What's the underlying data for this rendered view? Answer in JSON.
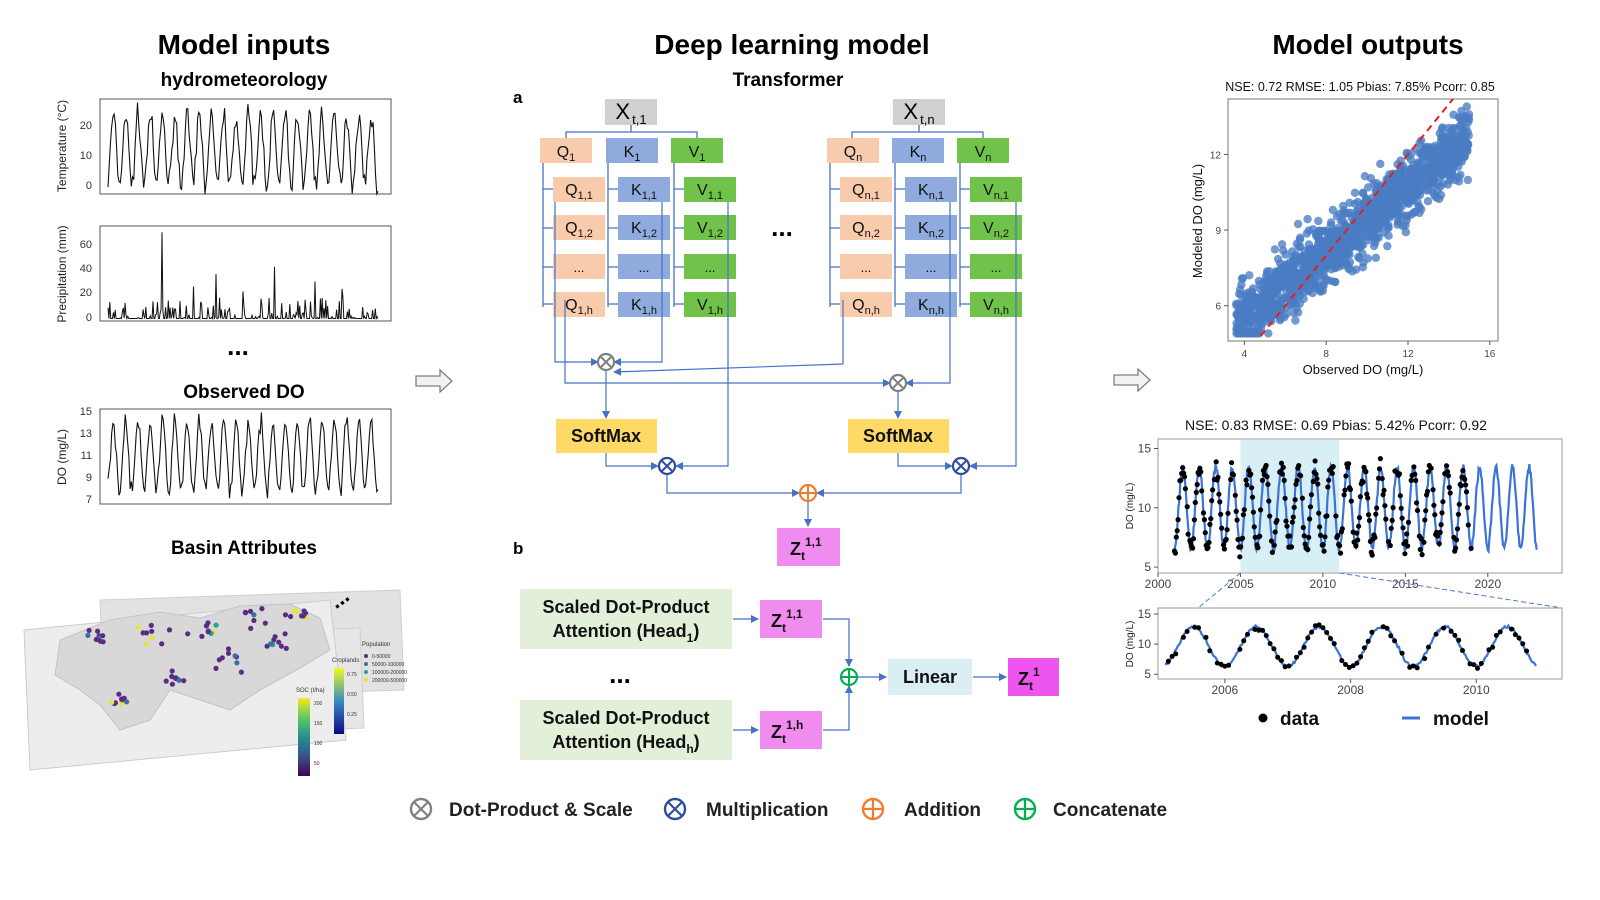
{
  "titles": {
    "inputs": "Model inputs",
    "model": "Deep learning model",
    "outputs": "Model outputs"
  },
  "inputs": {
    "hydromet": "hydrometeorology",
    "temp_ylabel": "Temperature (°C)",
    "temp_ticks": [
      "20",
      "10",
      "0"
    ],
    "precip_ylabel": "Precipitation (mm)",
    "precip_ticks": [
      "60",
      "40",
      "20",
      "0"
    ],
    "ellipsis": "...",
    "observed_do": "Observed DO",
    "do_ylabel": "DO (mg/L)",
    "do_ticks": [
      "15",
      "13",
      "11",
      "9",
      "7"
    ],
    "basin": "Basin Attributes",
    "map_legend": {
      "population": "Population",
      "pop_items": [
        "0-50000",
        "50000-100000",
        "100000-200000",
        "200000-500000"
      ],
      "croplands": "Croplands",
      "crop_ticks": [
        "0.75",
        "0.50",
        "0.25"
      ],
      "soc": "SOC (t/ha)",
      "soc_ticks": [
        "200",
        "150",
        "100",
        "50"
      ]
    }
  },
  "model": {
    "transformer": "Transformer",
    "label_a": "a",
    "label_b": "b",
    "head1": {
      "x_main": "X",
      "x_sub": "t,1",
      "q": "Q",
      "q_sub": "1",
      "k": "K",
      "k_sub": "1",
      "v": "V",
      "v_sub": "1",
      "rows": [
        {
          "q": "Q",
          "q_sub": "1,1",
          "k": "K",
          "k_sub": "1,1",
          "v": "V",
          "v_sub": "1,1"
        },
        {
          "q": "Q",
          "q_sub": "1,2",
          "k": "K",
          "k_sub": "1,2",
          "v": "V",
          "v_sub": "1,2"
        },
        {
          "q": "...",
          "q_sub": "",
          "k": "...",
          "k_sub": "",
          "v": "...",
          "v_sub": ""
        },
        {
          "q": "Q",
          "q_sub": "1,h",
          "k": "K",
          "k_sub": "1,h",
          "v": "V",
          "v_sub": "1,h"
        }
      ]
    },
    "headn": {
      "x_main": "X",
      "x_sub": "t,n",
      "q": "Q",
      "q_sub": "n",
      "k": "K",
      "k_sub": "n",
      "v": "V",
      "v_sub": "n",
      "rows": [
        {
          "q": "Q",
          "q_sub": "n,1",
          "k": "K",
          "k_sub": "n,1",
          "v": "V",
          "v_sub": "n,1"
        },
        {
          "q": "Q",
          "q_sub": "n,2",
          "k": "K",
          "k_sub": "n,2",
          "v": "V",
          "v_sub": "n,2"
        },
        {
          "q": "...",
          "q_sub": "",
          "k": "...",
          "k_sub": "",
          "v": "...",
          "v_sub": ""
        },
        {
          "q": "Q",
          "q_sub": "n,h",
          "k": "K",
          "k_sub": "n,h",
          "v": "V",
          "v_sub": "n,h"
        }
      ]
    },
    "between_dots": "...",
    "softmax": "SoftMax",
    "z_out": {
      "main": "Z",
      "sub": "t",
      "sup": "1,1"
    },
    "sdpa": {
      "line1": "Scaled Dot-Product",
      "line2": "Attention (Head",
      "sub1": "1",
      "subh": "h",
      "close": ")"
    },
    "z_head1": {
      "main": "Z",
      "sub": "t",
      "sup": "1,1"
    },
    "z_headh": {
      "main": "Z",
      "sub": "t",
      "sup": "1,h"
    },
    "b_dots": "...",
    "linear": "Linear",
    "z_final": {
      "main": "Z",
      "sub": "t",
      "sup": "1"
    }
  },
  "outputs": {
    "scatter_metrics": "NSE: 0.72  RMSE: 1.05  Pbias: 7.85%  Pcorr: 0.85",
    "scatter_xlabel": "Observed DO (mg/L)",
    "scatter_ylabel": "Modeled DO (mg/L)",
    "ts_metrics": "NSE: 0.83  RMSE: 0.69  Pbias: 5.42%  Pcorr: 0.92",
    "ts_ylabel": "DO (mg/L)",
    "zoom_ylabel": "DO (mg/L)",
    "legend_data": "data",
    "legend_model": "model"
  },
  "legend": {
    "dot_product": "Dot-Product & Scale",
    "multiplication": "Multiplication",
    "addition": "Addition",
    "concatenate": "Concatenate"
  },
  "colors": {
    "q": "#f8cbad",
    "k": "#8faadc",
    "v": "#70c24a",
    "x": "#d0d0d0",
    "softmax": "#ffd966",
    "z": "#f08cf0",
    "z_final": "#ee55ee",
    "sdpa": "#e2f0d9",
    "linear": "#dbeef4",
    "arrow": "#4472c4",
    "scatter_point": "#4a7cc4",
    "one_to_one": "#e02020",
    "highlight": "#d9eff6",
    "model_line": "#3a74d6",
    "dot_product_sym": "#808080",
    "multiplication_sym": "#2f4d9e",
    "addition_sym": "#ed7d31",
    "concatenate_sym": "#00b050"
  },
  "chart_data": [
    {
      "type": "line",
      "name": "temperature",
      "ylabel": "Temperature (°C)",
      "ylim": [
        -3,
        27
      ],
      "yticks": [
        0,
        10,
        20
      ],
      "seasonal_cycles": 22,
      "mean": 11,
      "amplitude": 11
    },
    {
      "type": "line",
      "name": "precipitation",
      "ylabel": "Precipitation (mm)",
      "ylim": [
        -2,
        75
      ],
      "yticks": [
        0,
        20,
        40,
        60
      ],
      "peak": 70
    },
    {
      "type": "line",
      "name": "observed_do",
      "ylabel": "DO (mg/L)",
      "ylim": [
        6.6,
        15.4
      ],
      "yticks": [
        7,
        9,
        11,
        13,
        15
      ],
      "seasonal_cycles": 22,
      "mean": 11,
      "amplitude": 3.2
    },
    {
      "type": "scatter",
      "title": "NSE: 0.72  RMSE: 1.05  Pbias: 7.85%  Pcorr: 0.85",
      "xlabel": "Observed DO (mg/L)",
      "ylabel": "Modeled DO (mg/L)",
      "xlim": [
        3.2,
        16.4
      ],
      "ylim": [
        4.6,
        14.2
      ],
      "xticks": [
        4,
        8,
        12,
        16
      ],
      "yticks": [
        6,
        9,
        12
      ],
      "one_to_one_line": true,
      "n_points": 1400
    },
    {
      "type": "line",
      "title": "NSE: 0.83  RMSE: 0.69  Pbias: 5.42%  Pcorr: 0.92",
      "ylabel": "DO (mg/L)",
      "xlim": [
        2000,
        2024.5
      ],
      "ylim": [
        4.5,
        15.8
      ],
      "xticks": [
        2000,
        2005,
        2010,
        2015,
        2020
      ],
      "yticks": [
        5,
        10,
        15
      ],
      "highlight_range": [
        2005,
        2011
      ],
      "data_range": [
        2001,
        2019
      ],
      "model_range": [
        2001,
        2023
      ],
      "series": [
        {
          "name": "data"
        },
        {
          "name": "model"
        }
      ]
    },
    {
      "type": "line",
      "ylabel": "DO (mg/L)",
      "xlim": [
        2005,
        2011.3
      ],
      "ylim": [
        4.2,
        16
      ],
      "xticks": [
        2006,
        2008,
        2010
      ],
      "yticks": [
        5,
        10,
        15
      ],
      "series": [
        {
          "name": "data"
        },
        {
          "name": "model"
        }
      ]
    }
  ]
}
